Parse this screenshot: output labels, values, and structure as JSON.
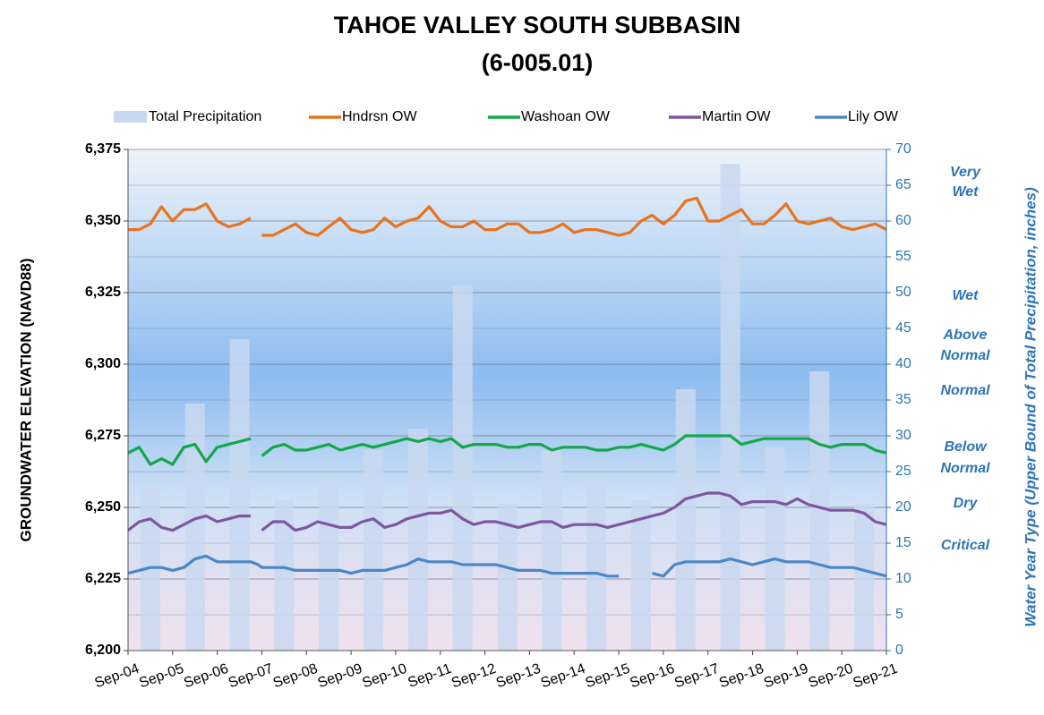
{
  "chart_data": {
    "type": "bar_line",
    "title": [
      "TAHOE VALLEY SOUTH SUBBASIN",
      "(6-005.01)"
    ],
    "y_label": "GROUNDWATER ELEVATION (NAVD88)",
    "y2_label": "Water Year Type (Upper Bound of Total Precipitation, inches)",
    "annotations": [
      [
        "Very",
        "Wet"
      ],
      [
        "Wet"
      ],
      [
        "Above",
        "Normal"
      ],
      [
        "Normal"
      ],
      [
        "Below",
        "Normal"
      ],
      [
        "Dry"
      ],
      [
        "Critical"
      ]
    ],
    "xlim": [
      "Sep-04",
      "Sep-21"
    ],
    "xticks": [
      "Sep-04",
      "Sep-05",
      "Sep-06",
      "Sep-07",
      "Sep-08",
      "Sep-09",
      "Sep-10",
      "Sep-11",
      "Sep-12",
      "Sep-13",
      "Sep-14",
      "Sep-15",
      "Sep-16",
      "Sep-17",
      "Sep-18",
      "Sep-19",
      "Sep-20",
      "Sep-21"
    ],
    "ylim": [
      6200,
      6375
    ],
    "yticks": [
      {
        "value": 6200,
        "label": "6,200"
      },
      {
        "value": 6225,
        "label": "6,225"
      },
      {
        "value": 6250,
        "label": "6,250"
      },
      {
        "value": 6275,
        "label": "6,275"
      },
      {
        "value": 6300,
        "label": "6,300"
      },
      {
        "value": 6325,
        "label": "6,325"
      },
      {
        "value": 6350,
        "label": "6,350"
      },
      {
        "value": 6375,
        "label": "6,375"
      }
    ],
    "y2lim": [
      0,
      70
    ],
    "y2ticks": [
      0,
      5,
      10,
      15,
      20,
      25,
      30,
      35,
      40,
      45,
      50,
      55,
      60,
      65,
      70
    ],
    "grid": true,
    "bars": {
      "name": "Total Precipitation",
      "color": "#c9d8f0",
      "axis": "y2",
      "x": [
        "Mar-05",
        "Mar-06",
        "Mar-07",
        "Mar-08",
        "Mar-09",
        "Mar-10",
        "Mar-11",
        "Mar-12",
        "Mar-13",
        "Mar-14",
        "Mar-15",
        "Mar-16",
        "Mar-17",
        "Mar-18",
        "Mar-19",
        "Mar-20",
        "Mar-21"
      ],
      "values": [
        22.5,
        34.5,
        43.5,
        21,
        24,
        28,
        31,
        51,
        20.5,
        28,
        24,
        21,
        36.5,
        68,
        28.5,
        39,
        20.5
      ]
    },
    "x": [
      "Sep-04",
      "Dec-04",
      "Mar-05",
      "Jun-05",
      "Sep-05",
      "Dec-05",
      "Mar-06",
      "Jun-06",
      "Sep-06",
      "Dec-06",
      "Mar-07",
      "Jun-07",
      "Aug-07",
      "Sep-07",
      "Dec-07",
      "Mar-08",
      "Jun-08",
      "Sep-08",
      "Dec-08",
      "Mar-09",
      "Jun-09",
      "Sep-09",
      "Dec-09",
      "Mar-10",
      "Jun-10",
      "Sep-10",
      "Dec-10",
      "Mar-11",
      "Jun-11",
      "Sep-11",
      "Dec-11",
      "Mar-12",
      "Jun-12",
      "Sep-12",
      "Dec-12",
      "Mar-13",
      "Jun-13",
      "Sep-13",
      "Dec-13",
      "Mar-14",
      "Jun-14",
      "Sep-14",
      "Dec-14",
      "Mar-15",
      "Jun-15",
      "Sep-15",
      "Dec-15",
      "Mar-16",
      "Jun-16",
      "Sep-16",
      "Dec-16",
      "Mar-17",
      "Jun-17",
      "Sep-17",
      "Dec-17",
      "Mar-18",
      "Jun-18",
      "Sep-18",
      "Dec-18",
      "Mar-19",
      "Jun-19",
      "Sep-19",
      "Dec-19",
      "Mar-20",
      "Jun-20",
      "Sep-20",
      "Dec-20",
      "Mar-21",
      "Jun-21",
      "Sep-21"
    ],
    "series": [
      {
        "name": "Hndrsn OW",
        "color": "#e8731e",
        "values": [
          6347,
          6347,
          6349,
          6355,
          6350,
          6354,
          6354,
          6356,
          6350,
          6348,
          6349,
          6351,
          null,
          6345,
          6345,
          6347,
          6349,
          6346,
          6345,
          6348,
          6351,
          6347,
          6346,
          6347,
          6351,
          6348,
          6350,
          6351,
          6355,
          6350,
          6348,
          6348,
          6350,
          6347,
          6347,
          6349,
          6349,
          6346,
          6346,
          6347,
          6349,
          6346,
          6347,
          6347,
          6346,
          6345,
          6346,
          6350,
          6352,
          6349,
          6352,
          6357,
          6358,
          6350,
          6350,
          6352,
          6354,
          6349,
          6349,
          6352,
          6356,
          6350,
          6349,
          6350,
          6351,
          6348,
          6347,
          6348,
          6349,
          6347
        ]
      },
      {
        "name": "Washoan OW",
        "color": "#12a84a",
        "values": [
          6269,
          6271,
          6265,
          6267,
          6265,
          6271,
          6272,
          6266,
          6271,
          6272,
          6273,
          6274,
          null,
          6268,
          6271,
          6272,
          6270,
          6270,
          6271,
          6272,
          6270,
          6271,
          6272,
          6271,
          6272,
          6273,
          6274,
          6273,
          6274,
          6273,
          6274,
          6271,
          6272,
          6272,
          6272,
          6271,
          6271,
          6272,
          6272,
          6270,
          6271,
          6271,
          6271,
          6270,
          6270,
          6271,
          6271,
          6272,
          6271,
          6270,
          6272,
          6275,
          6275,
          6275,
          6275,
          6275,
          6272,
          6273,
          6274,
          6274,
          6274,
          6274,
          6274,
          6272,
          6271,
          6272,
          6272,
          6272,
          6270,
          6269
        ]
      },
      {
        "name": "Martin OW",
        "color": "#7d57a0",
        "values": [
          6242,
          6245,
          6246,
          6243,
          6242,
          6244,
          6246,
          6247,
          6245,
          6246,
          6247,
          6247,
          null,
          6242,
          6245,
          6245,
          6242,
          6243,
          6245,
          6244,
          6243,
          6243,
          6245,
          6246,
          6243,
          6244,
          6246,
          6247,
          6248,
          6248,
          6249,
          6246,
          6244,
          6245,
          6245,
          6244,
          6243,
          6244,
          6245,
          6245,
          6243,
          6244,
          6244,
          6244,
          6243,
          6244,
          6245,
          6246,
          6247,
          6248,
          6250,
          6253,
          6254,
          6255,
          6255,
          6254,
          6251,
          6252,
          6252,
          6252,
          6251,
          6253,
          6251,
          6250,
          6249,
          6249,
          6249,
          6248,
          6245,
          6244
        ]
      },
      {
        "name": "Lily OW",
        "color": "#4a86c8",
        "values": [
          6227,
          6228,
          6229,
          6229,
          6228,
          6229,
          6232,
          6233,
          6231,
          6231,
          6231,
          6231,
          6230,
          6229,
          6229,
          6229,
          6228,
          6228,
          6228,
          6228,
          6228,
          6227,
          6228,
          6228,
          6228,
          6229,
          6230,
          6232,
          6231,
          6231,
          6231,
          6230,
          6230,
          6230,
          6230,
          6229,
          6228,
          6228,
          6228,
          6227,
          6227,
          6227,
          6227,
          6227,
          6226,
          6226,
          null,
          null,
          6227,
          6226,
          6230,
          6231,
          6231,
          6231,
          6231,
          6232,
          6231,
          6230,
          6231,
          6232,
          6231,
          6231,
          6231,
          6230,
          6229,
          6229,
          6229,
          6228,
          6227,
          6226
        ]
      }
    ]
  }
}
